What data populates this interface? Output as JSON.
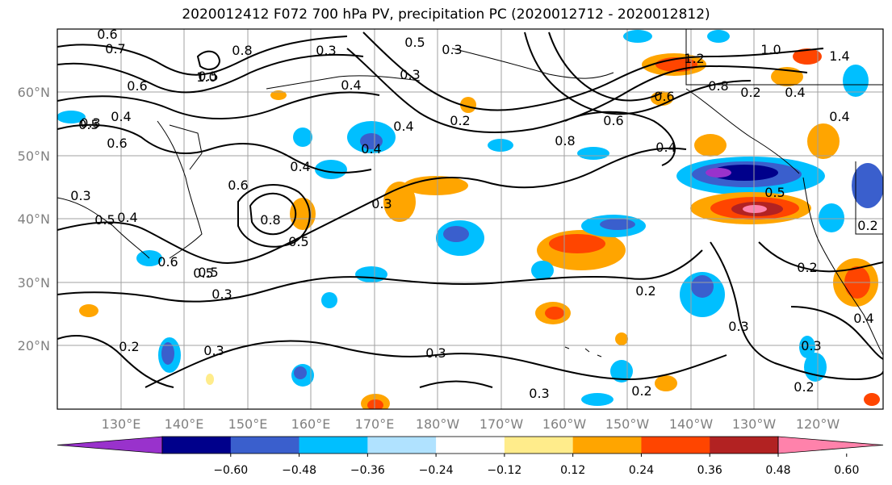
{
  "title": "2020012412 F072 700 hPa PV, precipitation PC (2020012712 - 2020012812)",
  "lat_labels": [
    "60°N",
    "50°N",
    "40°N",
    "30°N",
    "20°N"
  ],
  "lon_labels": [
    "130°E",
    "140°E",
    "150°E",
    "160°E",
    "170°E",
    "180°W",
    "170°W",
    "160°W",
    "150°W",
    "140°W",
    "130°W",
    "120°W"
  ],
  "colorbar": {
    "ticks": [
      "−0.60",
      "−0.48",
      "−0.36",
      "−0.24",
      "−0.12",
      "0.12",
      "0.24",
      "0.36",
      "0.48",
      "0.60"
    ],
    "colors": [
      "#9932cc",
      "#00008b",
      "#3a5fcd",
      "#00bfff",
      "#b0e2ff",
      "#ffffff",
      "#ffec8b",
      "#ffa500",
      "#ff4500",
      "#b22222",
      "#ff82ab"
    ]
  },
  "contour_labels": [
    "0.6",
    "0.7",
    "0.8",
    "1.0",
    "0.6",
    "0.5",
    "0.4",
    "0.6",
    "0.3",
    "0.5",
    "0.4",
    "0.3",
    "0.5",
    "0.4",
    "0.4",
    "0.5",
    "0.3",
    "0.2",
    "0.5",
    "0.4",
    "0.6",
    "0.8",
    "0.6",
    "0.3",
    "0.3",
    "0.5",
    "0.3",
    "0.3",
    "0.2",
    "0.2",
    "0.3",
    "0.2",
    "0.2",
    "0.3",
    "0.2",
    "0.3",
    "0.3",
    "0.4",
    "0.2",
    "0.6",
    "0.8",
    "1.0",
    "0.5",
    "0.5",
    "0.4",
    "1.4",
    "1.2",
    "0.6",
    "0.4",
    "0.4",
    "0.8",
    "0.3",
    "0.2",
    "0.4"
  ]
}
